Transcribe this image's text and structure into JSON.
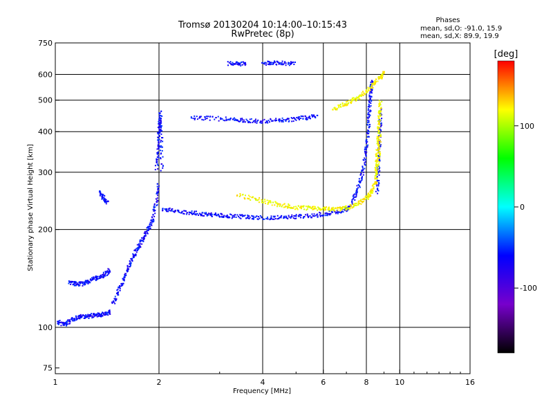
{
  "figure": {
    "title_line1": "Tromsø 20130204 10:14:00–10:15:43",
    "title_line2": "RwPretec (8p)",
    "stats_title": "Phases",
    "stats_o": "mean, sd,O: -91.0, 15.9",
    "stats_x": "mean, sd,X:  89.9, 19.9"
  },
  "chart_data": {
    "type": "scatter",
    "title": "Tromsø 20130204 10:14:00–10:15:43",
    "subtitle": "RwPretec (8p)",
    "xlabel": "Frequency [MHz]",
    "ylabel": "Stationary phase Virtual Height [km]",
    "x_scale": "log",
    "y_scale": "log",
    "xlim": [
      1,
      16
    ],
    "ylim": [
      72,
      750
    ],
    "x_ticks": [
      1,
      2,
      4,
      6,
      8,
      10,
      16
    ],
    "y_ticks": [
      75,
      100,
      200,
      300,
      400,
      500,
      600,
      750
    ],
    "x_grid": [
      2,
      4,
      6,
      8,
      10
    ],
    "y_grid": [
      100,
      200,
      300,
      400,
      500,
      600
    ],
    "grid": true,
    "colorbar": {
      "label": "[deg]",
      "range": [
        -180,
        180
      ],
      "ticks": [
        100,
        0,
        -100
      ],
      "colors": [
        "#000000",
        "#7700cc",
        "#0000ff",
        "#00ffff",
        "#00ff00",
        "#ffff00",
        "#ff0000"
      ]
    },
    "series": [
      {
        "name": "O",
        "phase_mean": -91.0,
        "phase_sd": 15.9,
        "traces": [
          {
            "x": [
              1.02,
              1.06,
              1.1,
              1.15,
              1.2,
              1.25,
              1.3,
              1.35,
              1.4,
              1.45
            ],
            "y": [
              104,
              102,
              104,
              107,
              108,
              108,
              109,
              109,
              110,
              112
            ]
          },
          {
            "x": [
              1.47,
              1.52,
              1.57,
              1.62,
              1.67,
              1.72,
              1.77,
              1.82,
              1.87,
              1.92,
              1.96,
              2.0
            ],
            "y": [
              118,
              128,
              138,
              150,
              162,
              172,
              182,
              192,
              202,
              215,
              240,
              280
            ]
          },
          {
            "x": [
              1.97,
              1.99,
              2.0,
              2.01,
              2.02,
              2.03,
              2.04
            ],
            "y": [
              310,
              350,
              390,
              420,
              460,
              380,
              300
            ]
          },
          {
            "x": [
              1.1,
              1.15,
              1.2,
              1.25,
              1.3,
              1.35,
              1.4,
              1.44
            ],
            "y": [
              137,
              136,
              136,
              138,
              141,
              143,
              146,
              150
            ]
          },
          {
            "x": [
              1.35,
              1.38,
              1.42
            ],
            "y": [
              262,
              250,
              240
            ]
          },
          {
            "x": [
              2.05,
              2.2,
              2.4,
              2.6,
              2.8,
              3.0,
              3.2,
              3.5,
              3.8,
              4.2,
              4.6,
              5.0,
              5.5,
              6.0,
              6.5,
              7.0,
              7.3
            ],
            "y": [
              232,
              229,
              226,
              224,
              222,
              221,
              220,
              219,
              218,
              217,
              218,
              219,
              220,
              223,
              226,
              230,
              238
            ]
          },
          {
            "x": [
              7.3,
              7.5,
              7.7,
              7.9,
              8.0,
              8.1,
              8.15,
              8.2,
              8.25,
              8.3
            ],
            "y": [
              245,
              262,
              285,
              320,
              355,
              400,
              450,
              500,
              540,
              580
            ]
          },
          {
            "x": [
              2.5,
              2.8,
              3.2,
              3.5,
              3.8,
              4.2,
              4.6,
              5.0,
              5.4,
              5.8
            ],
            "y": [
              441,
              440,
              436,
              433,
              431,
              432,
              434,
              438,
              442,
              447
            ]
          },
          {
            "x": [
              3.2,
              3.4,
              3.6
            ],
            "y": [
              648,
              646,
              647
            ]
          },
          {
            "x": [
              4.0,
              4.3,
              4.6,
              5.0
            ],
            "y": [
              650,
              652,
              649,
              648
            ]
          },
          {
            "x": [
              8.6,
              8.65,
              8.7,
              8.75,
              8.78,
              8.8
            ],
            "y": [
              260,
              290,
              330,
              370,
              420,
              470
            ]
          }
        ]
      },
      {
        "name": "X",
        "phase_mean": 89.9,
        "phase_sd": 19.9,
        "traces": [
          {
            "x": [
              3.4,
              3.8,
              4.2,
              4.6,
              5.0,
              5.4,
              5.8,
              6.2,
              6.6,
              7.0,
              7.4,
              7.8,
              8.1,
              8.3,
              8.5,
              8.6,
              8.7,
              8.75
            ],
            "y": [
              255,
              248,
              242,
              237,
              234,
              233,
              232,
              231,
              231,
              233,
              238,
              245,
              252,
              262,
              280,
              305,
              340,
              400
            ]
          },
          {
            "x": [
              8.55,
              8.6,
              8.65,
              8.7,
              8.75,
              8.8
            ],
            "y": [
              300,
              340,
              380,
              420,
              460,
              500
            ]
          },
          {
            "x": [
              6.4,
              6.8,
              7.2,
              7.6,
              8.0,
              8.4,
              8.8,
              9.0
            ],
            "y": [
              470,
              480,
              495,
              510,
              530,
              560,
              590,
              610
            ]
          }
        ]
      }
    ]
  }
}
